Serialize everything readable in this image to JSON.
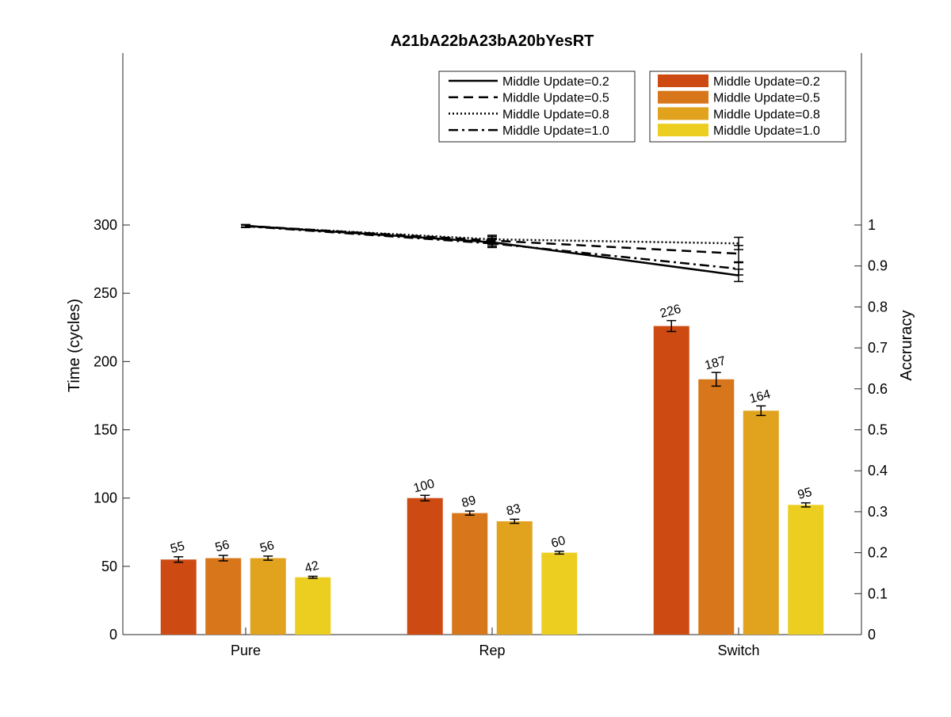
{
  "chart_data": {
    "type": "bar",
    "title": "A21bA22bA23bA20bYesRT",
    "categories": [
      "Pure",
      "Rep",
      "Switch"
    ],
    "ylabel": "Time (cycles)",
    "y2label": "Accruracy",
    "ylim": [
      0,
      300
    ],
    "yticks": [
      "0",
      "50",
      "100",
      "150",
      "200",
      "250",
      "300"
    ],
    "y2lim": [
      0,
      1
    ],
    "y2ticks": [
      "0",
      "0.1",
      "0.2",
      "0.3",
      "0.4",
      "0.5",
      "0.6",
      "0.7",
      "0.8",
      "0.9",
      "1"
    ],
    "grid": false,
    "bar_series": [
      {
        "name": "Middle Update=0.2",
        "color": "#cd4b12",
        "values": [
          55,
          100,
          226
        ],
        "labels": [
          "55",
          "100",
          "226"
        ],
        "errors": [
          2,
          2,
          4
        ]
      },
      {
        "name": "Middle Update=0.5",
        "color": "#d7761a",
        "values": [
          56,
          89,
          187
        ],
        "labels": [
          "56",
          "89",
          "187"
        ],
        "errors": [
          2,
          1.5,
          5
        ]
      },
      {
        "name": "Middle Update=0.8",
        "color": "#e1a31e",
        "values": [
          56,
          83,
          164
        ],
        "labels": [
          "56",
          "83",
          "164"
        ],
        "errors": [
          1.5,
          1.5,
          3.5
        ]
      },
      {
        "name": "Middle Update=1.0",
        "color": "#ecce20",
        "values": [
          42,
          60,
          95
        ],
        "labels": [
          "42",
          "60",
          "95"
        ],
        "errors": [
          0.7,
          1,
          1.5
        ]
      }
    ],
    "line_series": [
      {
        "name": "Middle Update=0.2",
        "dash": "solid",
        "values": [
          0.998,
          0.958,
          0.877
        ],
        "errors": [
          0.003,
          0.01,
          0.015
        ]
      },
      {
        "name": "Middle Update=0.5",
        "dash": "dashed",
        "values": [
          0.998,
          0.962,
          0.93
        ],
        "errors": [
          0.003,
          0.01,
          0.02
        ]
      },
      {
        "name": "Middle Update=0.8",
        "dash": "dotted",
        "values": [
          0.997,
          0.965,
          0.955
        ],
        "errors": [
          0.003,
          0.01,
          0.015
        ]
      },
      {
        "name": "Middle Update=1.0",
        "dash": "dashdot",
        "values": [
          0.997,
          0.955,
          0.893
        ],
        "errors": [
          0.003,
          0.01,
          0.015
        ]
      }
    ],
    "legend_lines_position": "top-right",
    "legend_bars_position": "top-right"
  }
}
